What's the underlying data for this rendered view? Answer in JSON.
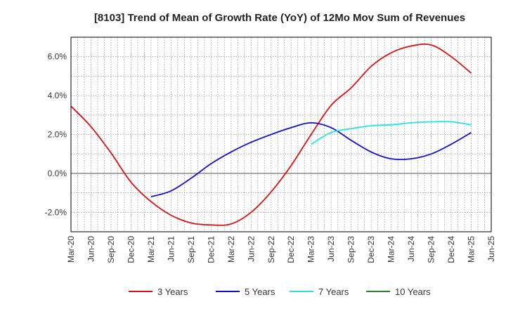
{
  "chart_data": {
    "type": "line",
    "title": "[8103]  Trend of Mean of Growth Rate (YoY) of 12Mo Mov Sum of Revenues",
    "xlabel": "",
    "ylabel": "",
    "x_ticks": [
      "Mar-20",
      "Jun-20",
      "Sep-20",
      "Dec-20",
      "Mar-21",
      "Jun-21",
      "Sep-21",
      "Dec-21",
      "Mar-22",
      "Jun-22",
      "Sep-22",
      "Dec-22",
      "Mar-23",
      "Jun-23",
      "Sep-23",
      "Dec-23",
      "Mar-24",
      "Jun-24",
      "Sep-24",
      "Dec-24",
      "Mar-25",
      "Jun-25"
    ],
    "y_ticks": [
      {
        "value": 6.0,
        "label": "6.0%"
      },
      {
        "value": 4.0,
        "label": "4.0%"
      },
      {
        "value": 2.0,
        "label": "2.0%"
      },
      {
        "value": 0.0,
        "label": "0.0%"
      },
      {
        "value": -2.0,
        "label": "-2.0%"
      }
    ],
    "ylim": [
      -3.0,
      7.0
    ],
    "grid": true,
    "legend_position": "bottom",
    "series": [
      {
        "name": "3 Years",
        "color": "#dd1111",
        "points": [
          [
            0,
            3.45
          ],
          [
            1,
            2.4
          ],
          [
            2,
            1.05
          ],
          [
            3,
            -0.45
          ],
          [
            4,
            -1.45
          ],
          [
            5,
            -2.15
          ],
          [
            6,
            -2.55
          ],
          [
            7,
            -2.65
          ],
          [
            8,
            -2.6
          ],
          [
            9,
            -2.0
          ],
          [
            10,
            -0.95
          ],
          [
            11,
            0.4
          ],
          [
            12,
            2.0
          ],
          [
            13,
            3.5
          ],
          [
            14,
            4.4
          ],
          [
            15,
            5.5
          ],
          [
            16,
            6.2
          ],
          [
            17,
            6.55
          ],
          [
            18,
            6.6
          ],
          [
            19,
            6.0
          ],
          [
            20,
            5.15
          ]
        ]
      },
      {
        "name": "5 Years",
        "color": "#1111cc",
        "points": [
          [
            4,
            -1.2
          ],
          [
            5,
            -0.9
          ],
          [
            6,
            -0.25
          ],
          [
            7,
            0.5
          ],
          [
            8,
            1.1
          ],
          [
            9,
            1.6
          ],
          [
            10,
            2.0
          ],
          [
            11,
            2.35
          ],
          [
            12,
            2.6
          ],
          [
            13,
            2.35
          ],
          [
            14,
            1.7
          ],
          [
            15,
            1.1
          ],
          [
            16,
            0.75
          ],
          [
            17,
            0.75
          ],
          [
            18,
            1.0
          ],
          [
            19,
            1.5
          ],
          [
            20,
            2.1
          ]
        ]
      },
      {
        "name": "7 Years",
        "color": "#22e5e5",
        "points": [
          [
            12,
            1.5
          ],
          [
            13,
            2.1
          ],
          [
            14,
            2.3
          ],
          [
            15,
            2.45
          ],
          [
            16,
            2.5
          ],
          [
            17,
            2.6
          ],
          [
            18,
            2.65
          ],
          [
            19,
            2.65
          ],
          [
            20,
            2.5
          ]
        ]
      },
      {
        "name": "10 Years",
        "color": "#228822",
        "points": []
      }
    ]
  }
}
